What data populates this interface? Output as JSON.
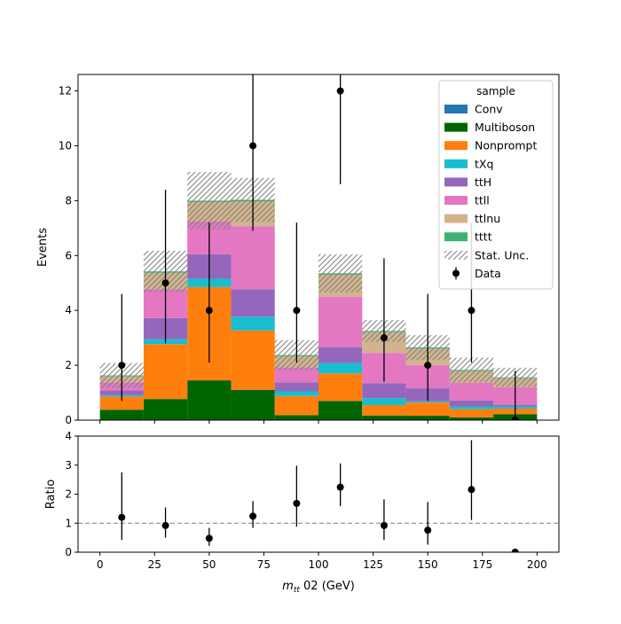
{
  "chart_data": {
    "type": "bar",
    "stacked": true,
    "bin_edges": [
      0,
      20,
      40,
      60,
      80,
      100,
      120,
      140,
      160,
      180,
      200
    ],
    "x_centers": [
      10,
      30,
      50,
      70,
      90,
      110,
      130,
      150,
      170,
      190
    ],
    "xlabel_parts": {
      "m": "m",
      "sub": "tt",
      "rest": " 02 (GeV)"
    },
    "xlim": [
      -10,
      210
    ],
    "xticks": [
      "0",
      "25",
      "50",
      "75",
      "100",
      "125",
      "150",
      "175",
      "200"
    ],
    "main_panel": {
      "ylabel": "Events",
      "ylim": [
        0,
        12.6
      ],
      "yticks": [
        "0",
        "2",
        "4",
        "6",
        "8",
        "10",
        "12"
      ],
      "series": [
        {
          "name": "Conv",
          "color": "#1f77b4",
          "values": [
            0,
            0,
            0,
            0,
            0,
            0,
            0,
            0,
            0,
            0
          ]
        },
        {
          "name": "Multiboson",
          "color": "#006400",
          "values": [
            0.38,
            0.77,
            1.45,
            1.1,
            0.18,
            0.7,
            0.17,
            0.16,
            0.1,
            0.22
          ]
        },
        {
          "name": "Nonprompt",
          "color": "#ff7f0e",
          "values": [
            0.48,
            2.0,
            3.4,
            2.17,
            0.7,
            1.0,
            0.38,
            0.48,
            0.3,
            0.2
          ]
        },
        {
          "name": "tXq",
          "color": "#17becf",
          "values": [
            0.05,
            0.18,
            0.3,
            0.5,
            0.17,
            0.38,
            0.25,
            0.05,
            0.1,
            0.08
          ]
        },
        {
          "name": "ttH",
          "color": "#9467bd",
          "values": [
            0.17,
            0.77,
            0.9,
            1.0,
            0.33,
            0.58,
            0.55,
            0.47,
            0.22,
            0.05
          ]
        },
        {
          "name": "ttll",
          "color": "#e377c2",
          "values": [
            0.3,
            1.05,
            1.2,
            2.3,
            0.55,
            1.84,
            1.1,
            0.85,
            0.65,
            0.65
          ]
        },
        {
          "name": "ttlnu",
          "color": "#d2b48c",
          "values": [
            0.22,
            0.6,
            0.7,
            0.9,
            0.4,
            0.8,
            0.76,
            0.6,
            0.42,
            0.33
          ]
        },
        {
          "name": "tttt",
          "color": "#3cb371",
          "values": [
            0.03,
            0.05,
            0.05,
            0.06,
            0.04,
            0.05,
            0.04,
            0.04,
            0.04,
            0.03
          ]
        }
      ],
      "stat_unc_half_width": [
        0.45,
        0.75,
        1.05,
        0.8,
        0.55,
        0.7,
        0.4,
        0.45,
        0.45,
        0.35
      ],
      "data": {
        "name": "Data",
        "y": [
          2,
          5,
          4,
          10,
          4,
          12,
          3,
          2,
          4,
          0
        ],
        "yerr_low": [
          1.3,
          2.2,
          1.9,
          3.1,
          1.9,
          3.4,
          1.6,
          1.3,
          1.9,
          0
        ],
        "yerr_high": [
          2.6,
          3.4,
          3.2,
          4.3,
          3.2,
          4.5,
          2.9,
          2.6,
          3.2,
          1.8
        ]
      },
      "legend": {
        "title": "sample",
        "placement": "top-right",
        "stat_unc_label": "Stat. Unc.",
        "entries": [
          "Conv",
          "Multiboson",
          "Nonprompt",
          "tXq",
          "ttH",
          "ttll",
          "ttlnu",
          "tttt",
          "Stat. Unc.",
          "Data"
        ]
      }
    },
    "ratio_panel": {
      "ylabel": "Ratio",
      "ylim": [
        0,
        4
      ],
      "yticks": [
        "0",
        "1",
        "2",
        "3",
        "4"
      ],
      "reference_line": 1,
      "y": [
        1.2,
        0.92,
        0.48,
        1.24,
        1.68,
        2.24,
        0.92,
        0.76,
        2.16,
        0
      ],
      "yerr_low": [
        0.78,
        0.42,
        0.26,
        0.4,
        0.8,
        0.65,
        0.5,
        0.5,
        1.05,
        0
      ],
      "yerr_high": [
        1.55,
        0.62,
        0.36,
        0.52,
        1.3,
        0.82,
        0.9,
        0.97,
        1.7,
        0
      ]
    }
  }
}
